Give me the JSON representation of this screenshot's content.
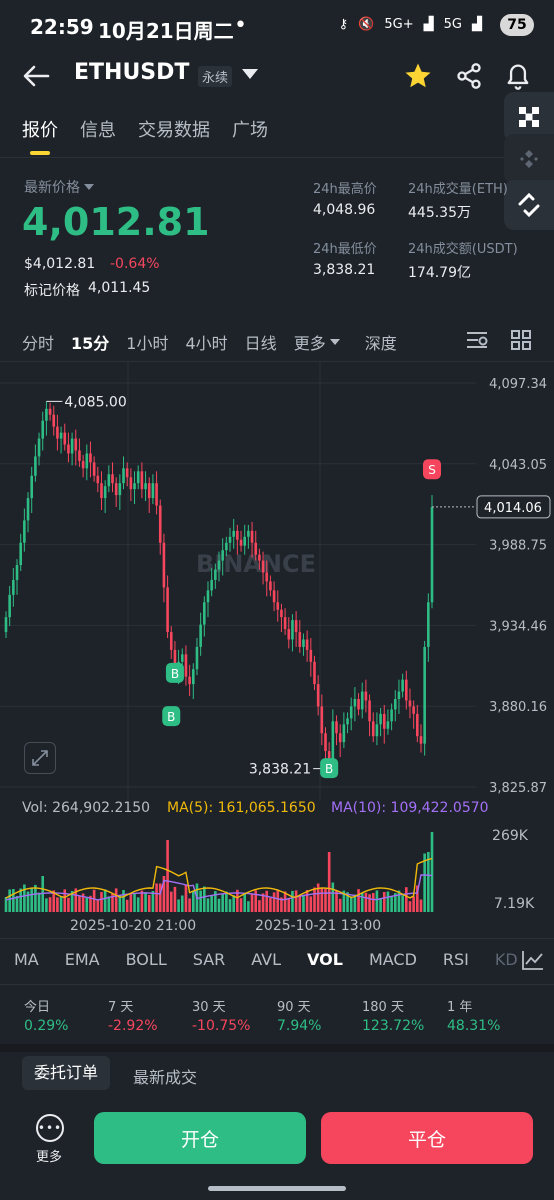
{
  "status_bar": {
    "time": "22:59",
    "date": "10月21日周二",
    "dot": "•",
    "net1": "5G+",
    "net2": "5G",
    "battery": "75"
  },
  "header": {
    "symbol": "ETHUSDT",
    "contract_tag": "永续"
  },
  "tabs": [
    "报价",
    "信息",
    "交易数据",
    "广场"
  ],
  "price": {
    "last_label": "最新价格",
    "last": "4,012.81",
    "usd": "$4,012.81",
    "change": "-0.64%",
    "mark_label": "标记价格",
    "mark": "4,011.45"
  },
  "stats": {
    "high_label": "24h最高价",
    "high": "4,048.96",
    "low_label": "24h最低价",
    "low": "3,838.21",
    "vol_label": "24h成交量(ETH)",
    "vol": "445.35万",
    "turnover_label": "24h成交额(USDT)",
    "turnover": "174.79亿"
  },
  "intervals": [
    "分时",
    "15分",
    "1小时",
    "4小时",
    "日线",
    "更多",
    "深度"
  ],
  "chart_data": {
    "type": "candlestick",
    "y_ticks": [
      "4,097.34",
      "4,043.05",
      "3,988.75",
      "3,934.46",
      "3,880.16",
      "3,825.87"
    ],
    "ylim": [
      3825.87,
      4097.34
    ],
    "high_marker": "4,085.00",
    "low_marker": "3,838.21",
    "current_price": "4,014.06",
    "watermark": "BINANCE",
    "closes": [
      3940,
      3955,
      3965,
      3975,
      3990,
      4005,
      4020,
      4035,
      4048,
      4060,
      4072,
      4080,
      4076,
      4068,
      4060,
      4064,
      4056,
      4050,
      4060,
      4052,
      4045,
      4040,
      4050,
      4044,
      4035,
      4030,
      4020,
      4028,
      4036,
      4030,
      4022,
      4030,
      4040,
      4034,
      4026,
      4030,
      4038,
      4026,
      4030,
      4020,
      4030,
      4015,
      3990,
      3960,
      3930,
      3918,
      3905,
      3910,
      3915,
      3900,
      3895,
      3905,
      3920,
      3935,
      3950,
      3958,
      3965,
      3972,
      3978,
      3985,
      3990,
      3994,
      3998,
      3992,
      3988,
      3994,
      3998,
      3990,
      3982,
      3978,
      3970,
      3964,
      3958,
      3950,
      3945,
      3940,
      3932,
      3925,
      3938,
      3930,
      3920,
      3925,
      3918,
      3910,
      3895,
      3880,
      3862,
      3850,
      3845,
      3870,
      3862,
      3856,
      3868,
      3872,
      3880,
      3885,
      3878,
      3890,
      3884,
      3870,
      3860,
      3868,
      3875,
      3865,
      3870,
      3878,
      3885,
      3890,
      3898,
      3884,
      3880,
      3875,
      3860,
      3855,
      3920,
      3950,
      4014
    ],
    "volume": {
      "label": "Vol: 264,902.2150",
      "ma5": "MA(5): 161,065.1650",
      "ma10": "MA(10): 109,422.0570",
      "y_top": "269K",
      "y_bottom": "7.19K"
    },
    "x_labels": [
      "2025-10-20 21:00",
      "2025-10-21 13:00"
    ],
    "signals": [
      "B",
      "B",
      "B",
      "S"
    ]
  },
  "indicators": [
    "MA",
    "EMA",
    "BOLL",
    "SAR",
    "AVL",
    "VOL",
    "MACD",
    "RSI",
    "KD"
  ],
  "performance": [
    {
      "label": "今日",
      "value": "0.29%",
      "dir": "up"
    },
    {
      "label": "7 天",
      "value": "-2.92%",
      "dir": "down"
    },
    {
      "label": "30 天",
      "value": "-10.75%",
      "dir": "down"
    },
    {
      "label": "90 天",
      "value": "7.94%",
      "dir": "up"
    },
    {
      "label": "180 天",
      "value": "123.72%",
      "dir": "up"
    },
    {
      "label": "1 年",
      "value": "48.31%",
      "dir": "up"
    }
  ],
  "orders": {
    "tab_active": "委托订单",
    "tab_other": "最新成交"
  },
  "bottom": {
    "more": "更多",
    "open": "开仓",
    "close": "平仓"
  },
  "colors": {
    "up": "#2ebd85",
    "down": "#f6465d",
    "accent": "#fcd535",
    "ma5": "#f0b90b",
    "ma10": "#a370f7"
  }
}
